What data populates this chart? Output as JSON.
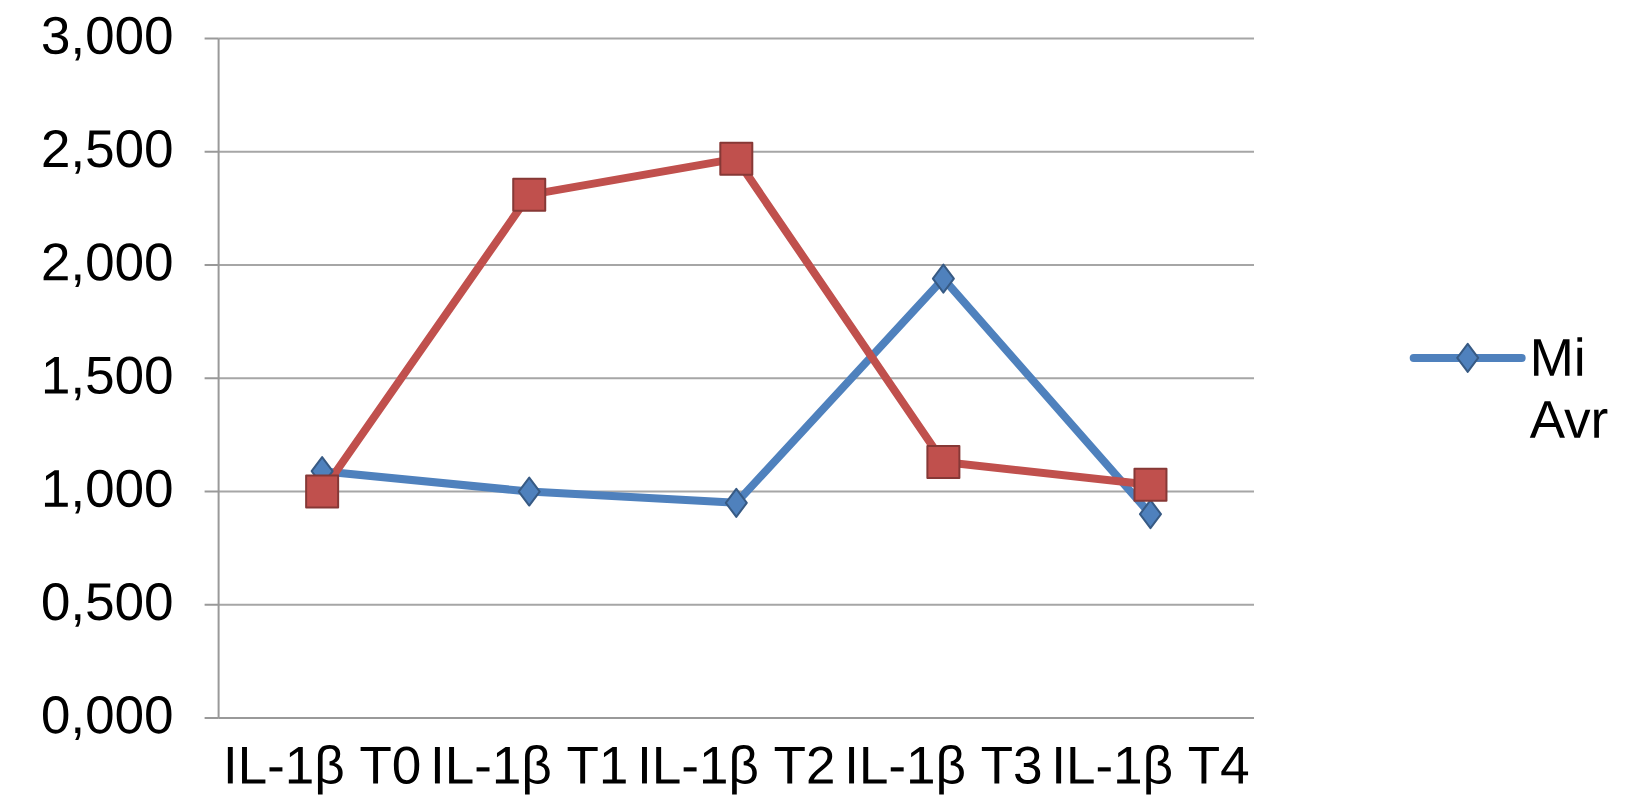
{
  "chart_data": {
    "type": "line",
    "categories": [
      "IL-1β T0",
      "IL-1β T1",
      "IL-1β T2",
      "IL-1β T3",
      "IL-1β T4"
    ],
    "series": [
      {
        "name": "Mi Avr",
        "color": "#4f81bd",
        "marker": "diamond",
        "values": [
          1.09,
          1.0,
          0.95,
          1.94,
          0.9
        ]
      },
      {
        "color": "#c0504d",
        "marker": "square",
        "values": [
          1.0,
          2.31,
          2.47,
          1.13,
          1.03
        ]
      }
    ],
    "ylim": [
      0,
      3
    ],
    "yticks": [
      {
        "value": 0,
        "label": "0,000"
      },
      {
        "value": 0.5,
        "label": "0,500"
      },
      {
        "value": 1,
        "label": "1,000"
      },
      {
        "value": 1.5,
        "label": "1,500"
      },
      {
        "value": 2,
        "label": "2,000"
      },
      {
        "value": 2.5,
        "label": "2,500"
      },
      {
        "value": 3,
        "label": "3,000"
      }
    ],
    "grid": "y",
    "legend": "right",
    "line_style": "solid"
  }
}
